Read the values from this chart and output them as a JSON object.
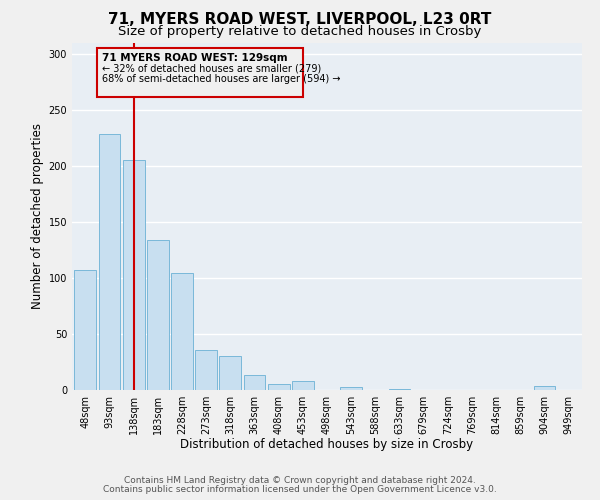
{
  "title1": "71, MYERS ROAD WEST, LIVERPOOL, L23 0RT",
  "title2": "Size of property relative to detached houses in Crosby",
  "xlabel": "Distribution of detached houses by size in Crosby",
  "ylabel": "Number of detached properties",
  "bar_labels": [
    "48sqm",
    "93sqm",
    "138sqm",
    "183sqm",
    "228sqm",
    "273sqm",
    "318sqm",
    "363sqm",
    "408sqm",
    "453sqm",
    "498sqm",
    "543sqm",
    "588sqm",
    "633sqm",
    "679sqm",
    "724sqm",
    "769sqm",
    "814sqm",
    "859sqm",
    "904sqm",
    "949sqm"
  ],
  "bar_values": [
    107,
    228,
    205,
    134,
    104,
    36,
    30,
    13,
    5,
    8,
    0,
    3,
    0,
    1,
    0,
    0,
    0,
    0,
    0,
    4,
    0
  ],
  "bar_color": "#c8dff0",
  "bar_edge_color": "#7ab8d9",
  "vline_x": 2,
  "vline_color": "#cc0000",
  "annotation_title": "71 MYERS ROAD WEST: 129sqm",
  "annotation_line1": "← 32% of detached houses are smaller (279)",
  "annotation_line2": "68% of semi-detached houses are larger (594) →",
  "box_edge_color": "#cc0000",
  "ylim": [
    0,
    310
  ],
  "yticks": [
    0,
    50,
    100,
    150,
    200,
    250,
    300
  ],
  "footer1": "Contains HM Land Registry data © Crown copyright and database right 2024.",
  "footer2": "Contains public sector information licensed under the Open Government Licence v3.0.",
  "fig_facecolor": "#f0f0f0",
  "ax_facecolor": "#e8eef4",
  "grid_color": "#ffffff",
  "title1_fontsize": 11,
  "title2_fontsize": 9.5,
  "tick_fontsize": 7,
  "label_fontsize": 8.5,
  "footer_fontsize": 6.5
}
